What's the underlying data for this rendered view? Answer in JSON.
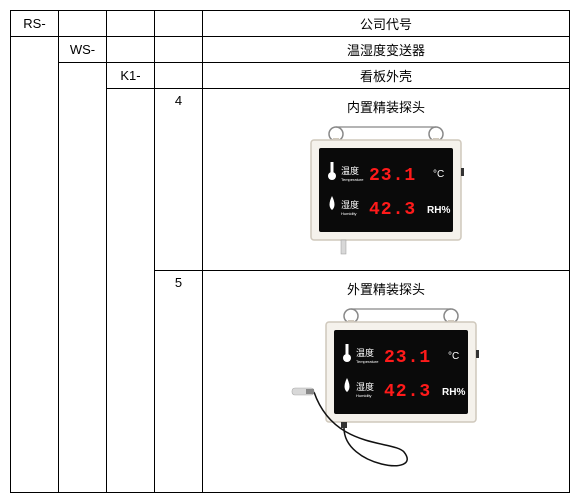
{
  "table": {
    "rows": [
      {
        "code": "RS-",
        "desc": "公司代号",
        "level": 1
      },
      {
        "code": "WS-",
        "desc": "温湿度变送器",
        "level": 2
      },
      {
        "code": "K1-",
        "desc": "看板外壳",
        "level": 3
      },
      {
        "code": "4",
        "desc": "内置精装探头",
        "level": 4,
        "device": "internal"
      },
      {
        "code": "5",
        "desc": "外置精装探头",
        "level": 4,
        "device": "external"
      }
    ]
  },
  "device": {
    "frame_color": "#f5f2ec",
    "frame_border": "#cfc8bc",
    "screen_bg": "#0a0a0a",
    "temp_label": "温度",
    "temp_label_en": "Temperature",
    "temp_value": "23.1",
    "temp_unit": "°C",
    "hum_label": "湿度",
    "hum_label_en": "Humidity",
    "hum_value": "42.3",
    "hum_unit": "RH%",
    "label_color": "#ffffff",
    "value_color": "#ff1a1a",
    "probe_tip_color": "#d8d8d8",
    "cable_color": "#111111",
    "ring_color": "#888888",
    "label_fontsize": 9,
    "value_fontsize": 18,
    "unit_fontsize": 10
  }
}
